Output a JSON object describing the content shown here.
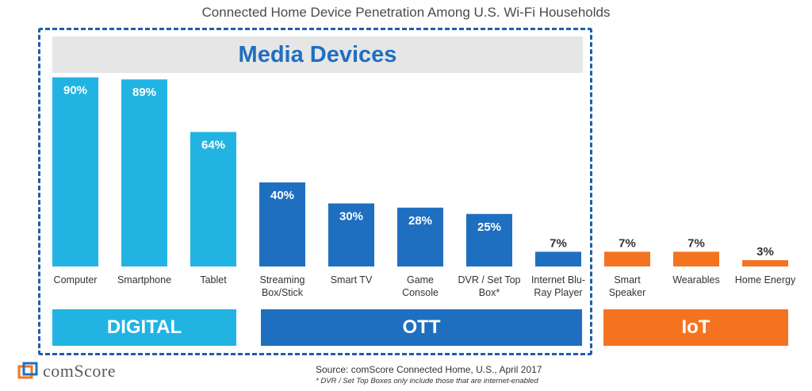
{
  "title": "Connected Home Device Penetration Among U.S. Wi-Fi Households",
  "media_banner": "Media Devices",
  "groups": {
    "digital": "DIGITAL",
    "ott": "OTT",
    "iot": "IoT"
  },
  "colors": {
    "digital": "#21b4e3",
    "ott": "#1f6fc0",
    "iot": "#f47320",
    "dashed_border": "#1f5fa8"
  },
  "source": "Source: comScore Connected Home, U.S., April 2017",
  "footnote": "* DVR / Set Top Boxes only include those that are internet-enabled",
  "logo_text": "comScore",
  "chart_data": {
    "type": "bar",
    "title": "Connected Home Device Penetration Among U.S. Wi-Fi Households",
    "ylim": [
      0,
      100
    ],
    "unit": "%",
    "grid": false,
    "categories": [
      [
        "Computer"
      ],
      [
        "Smartphone"
      ],
      [
        "Tablet"
      ],
      [
        "Streaming",
        "Box/Stick"
      ],
      [
        "Smart TV"
      ],
      [
        "Game",
        "Console"
      ],
      [
        "DVR / Set Top",
        "Box*"
      ],
      [
        "Internet Blu-",
        "Ray Player"
      ],
      [
        "Smart",
        "Speaker"
      ],
      [
        "Wearables"
      ],
      [
        "Home Energy"
      ]
    ],
    "values": [
      90,
      89,
      64,
      40,
      30,
      28,
      25,
      7,
      7,
      7,
      3
    ],
    "value_labels": [
      "90%",
      "89%",
      "64%",
      "40%",
      "30%",
      "28%",
      "25%",
      "7%",
      "7%",
      "7%",
      "3%"
    ],
    "groups": [
      "DIGITAL",
      "DIGITAL",
      "DIGITAL",
      "OTT",
      "OTT",
      "OTT",
      "OTT",
      "OTT",
      "IoT",
      "IoT",
      "IoT"
    ]
  }
}
